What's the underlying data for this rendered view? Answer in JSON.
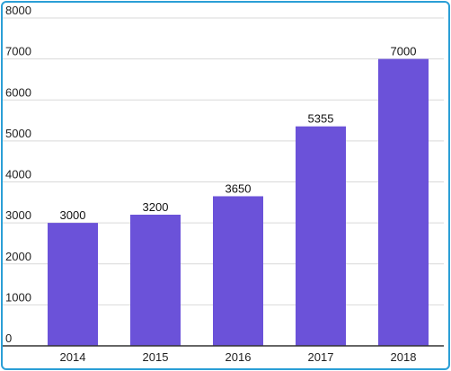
{
  "chart_data": {
    "type": "bar",
    "categories": [
      "2014",
      "2015",
      "2016",
      "2017",
      "2018"
    ],
    "values": [
      3000,
      3200,
      3650,
      5355,
      7000
    ],
    "data_labels": [
      "3000",
      "3200",
      "3650",
      "5355",
      "7000"
    ],
    "y_ticks": [
      "0",
      "1000",
      "2000",
      "3000",
      "4000",
      "5000",
      "6000",
      "7000",
      "8000"
    ],
    "ylim": [
      0,
      8000
    ],
    "title": "",
    "xlabel": "",
    "ylabel": "",
    "grid": true,
    "legend": "none",
    "colors": {
      "bar": "#6b52d9",
      "grid": "#d9d9d9",
      "axis": "#333333",
      "frame": "#2b9fd6"
    }
  }
}
